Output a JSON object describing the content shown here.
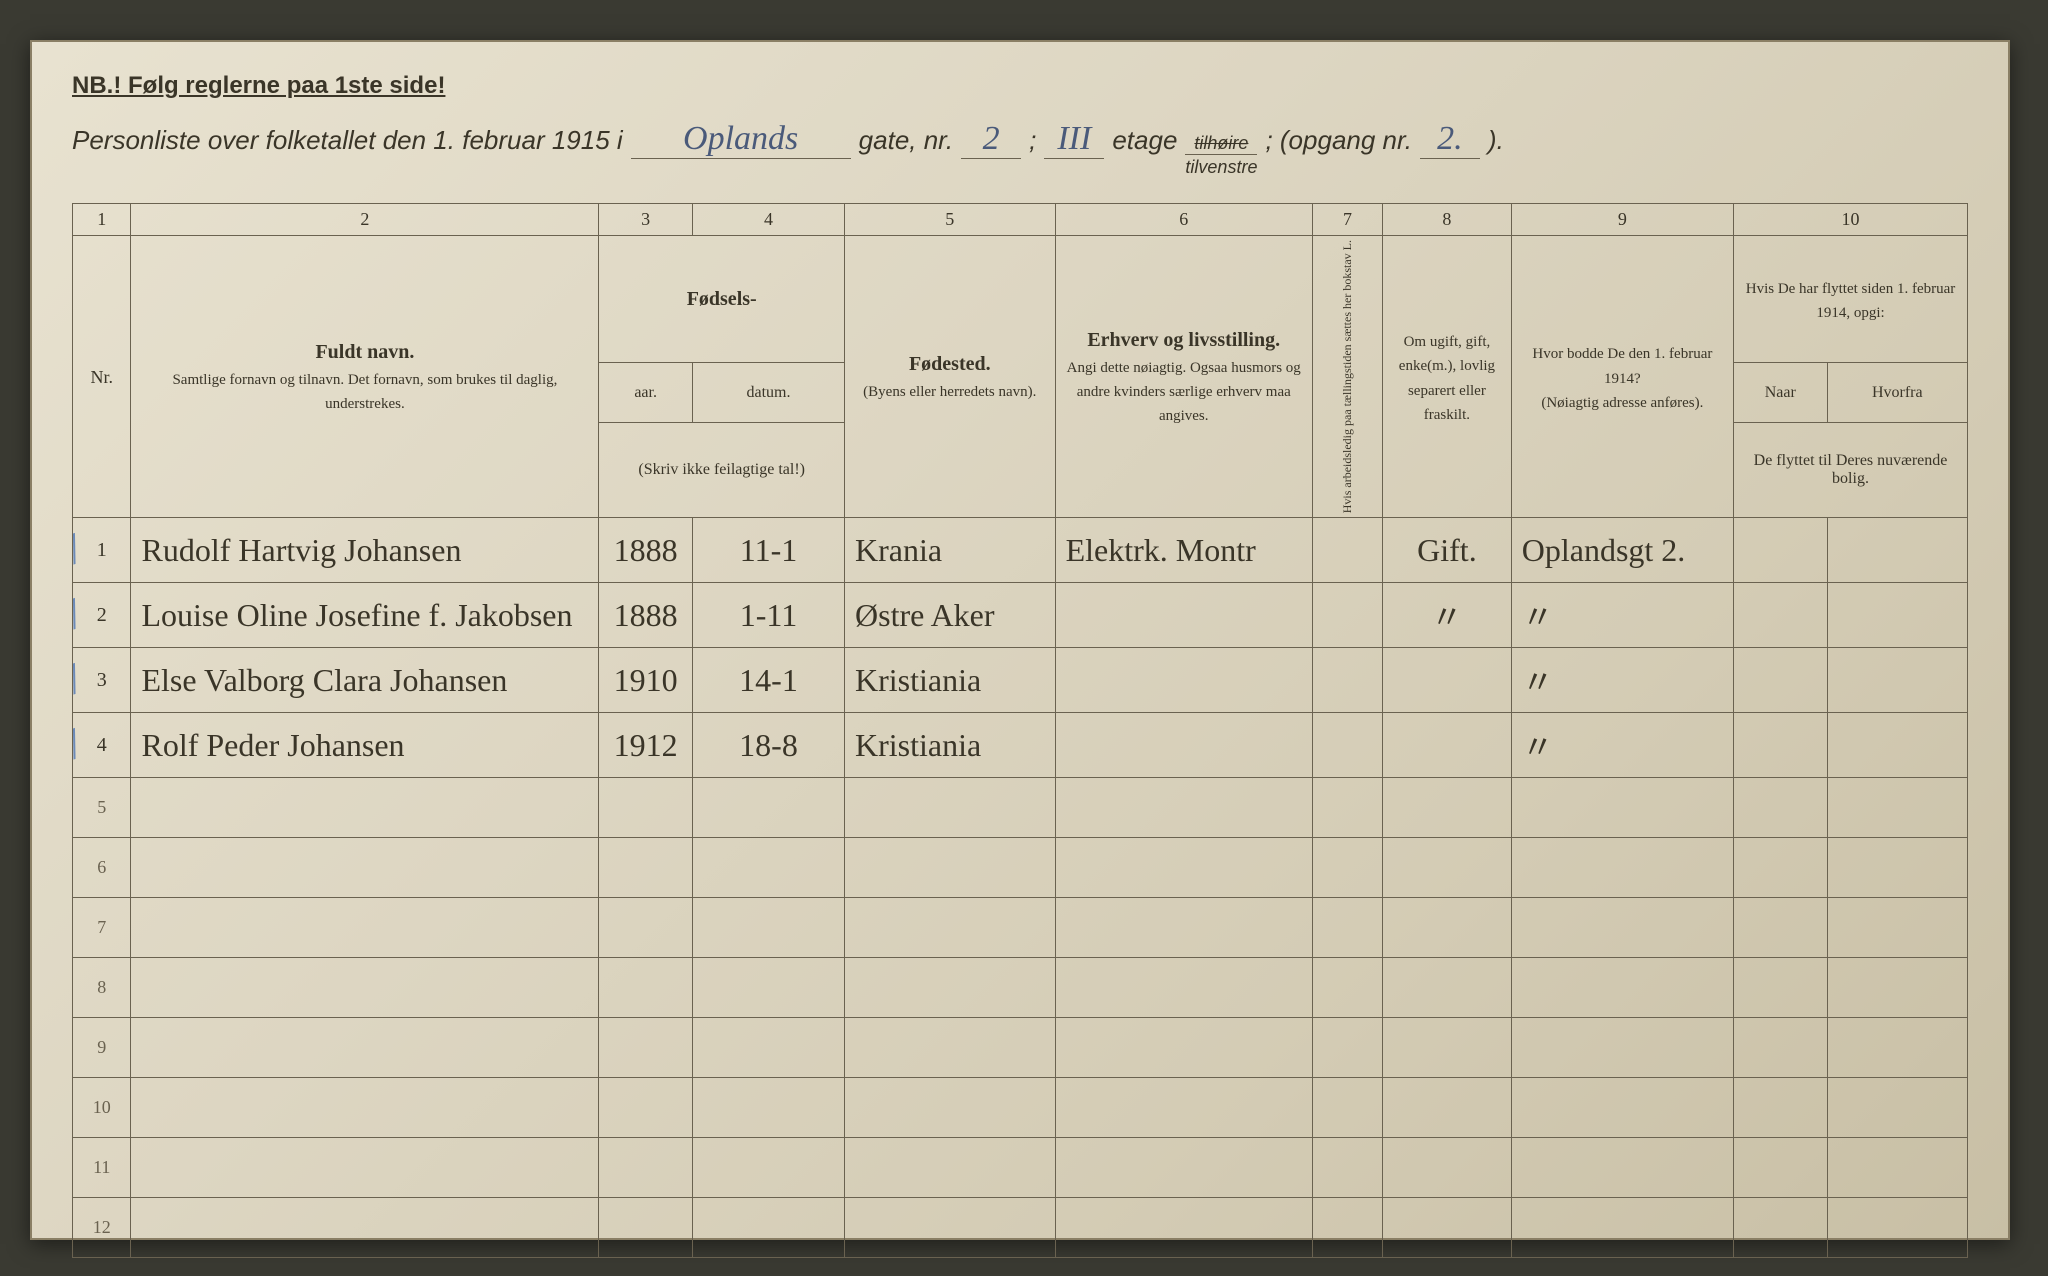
{
  "header": {
    "nb": "NB.! Følg reglerne paa 1ste side!",
    "intro": "Personliste over folketallet den 1. februar 1915 i",
    "street": "Oplands",
    "gate_label": "gate, nr.",
    "gate_nr": "2",
    "semicolon": ";",
    "etage_nr": "III",
    "etage_label": "etage",
    "struck": "tilhøire",
    "under_struck": "tilvenstre",
    "opgang_label": "; (opgang nr.",
    "opgang_nr": "2.",
    "close": ")."
  },
  "columns": {
    "nums": [
      "1",
      "2",
      "3",
      "4",
      "5",
      "6",
      "7",
      "8",
      "9",
      "10"
    ],
    "fuldt_navn": "Fuldt navn.",
    "fuldt_navn_sub": "Samtlige fornavn og tilnavn.  Det fornavn, som brukes til daglig, understrekes.",
    "fodsels": "Fødsels-",
    "aar": "aar.",
    "datum": "datum.",
    "fodsels_note": "(Skriv ikke feilagtige tal!)",
    "fodested": "Fødested.",
    "fodested_sub": "(Byens eller herredets navn).",
    "erhverv": "Erhverv og livsstilling.",
    "erhverv_sub": "Angi dette nøiagtig.\nOgsaa husmors og andre kvinders særlige erhverv maa angives.",
    "col7": "Hvis arbeidsledig paa tællingstiden sættes her bokstav L.",
    "col8": "Om ugift, gift, enke(m.), lovlig separert eller fraskilt.",
    "col9": "Hvor bodde De den 1. februar 1914?",
    "col9_sub": "(Nøiagtig adresse anføres).",
    "col10": "Hvis De har flyttet siden 1. februar 1914, opgi:",
    "naar": "Naar",
    "hvorfra": "Hvorfra",
    "col10_sub": "De flyttet til Deres nuværende bolig."
  },
  "rows": [
    {
      "nr": "1",
      "navn": "Rudolf Hartvig Johansen",
      "aar": "1888",
      "datum": "11-1",
      "fodested": "Krania",
      "erhverv": "Elektrk. Montr",
      "col8": "Gift.",
      "col9": "Oplandsgt 2."
    },
    {
      "nr": "2",
      "navn": "Louise Oline Josefine f. Jakobsen",
      "aar": "1888",
      "datum": "1-11",
      "fodested": "Østre Aker",
      "erhverv": "",
      "col8": "〃",
      "col9": "〃"
    },
    {
      "nr": "3",
      "navn": "Else Valborg Clara Johansen",
      "aar": "1910",
      "datum": "14-1",
      "fodested": "Kristiania",
      "erhverv": "",
      "col8": "",
      "col9": "〃"
    },
    {
      "nr": "4",
      "navn": "Rolf Peder Johansen",
      "aar": "1912",
      "datum": "18-8",
      "fodested": "Kristiania",
      "erhverv": "",
      "col8": "",
      "col9": "〃"
    }
  ],
  "empty_rows": [
    "5",
    "6",
    "7",
    "8",
    "9",
    "10",
    "11",
    "12"
  ],
  "colors": {
    "paper": "#ddd6c2",
    "ink_print": "#3a3528",
    "ink_hand": "#4a5a7a",
    "blue_pencil": "#6b8ab8",
    "rule": "#6a6250"
  }
}
